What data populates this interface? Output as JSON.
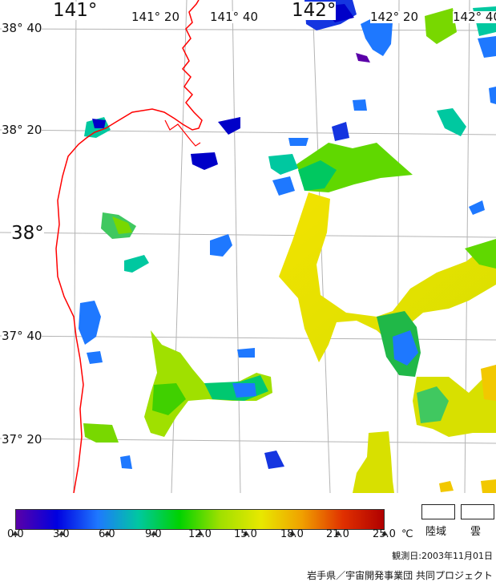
{
  "map": {
    "lon_labels": [
      "141°",
      "141° 20",
      "141° 40",
      "142°",
      "142° 20",
      "142° 40"
    ],
    "lat_labels": [
      "38° 40",
      "38° 20",
      "38°",
      "37° 40",
      "37° 20"
    ]
  },
  "legend": {
    "colors": [
      "#5a00a8",
      "#0000e0",
      "#1e78ff",
      "#00c8a0",
      "#00d200",
      "#a0e000",
      "#e8e800",
      "#f0a000",
      "#e03000",
      "#b00000"
    ],
    "ticks": [
      "0.0",
      "3.0",
      "6.0",
      "9.0",
      "12.0",
      "15.0",
      "18.0",
      "21.0",
      "25.0"
    ],
    "unit": "℃",
    "land_label": "陸域",
    "cloud_label": "雲",
    "date": "観測日:2003年11月01日",
    "organization": "岩手県／宇宙開発事業団 共同プロジェクト"
  }
}
